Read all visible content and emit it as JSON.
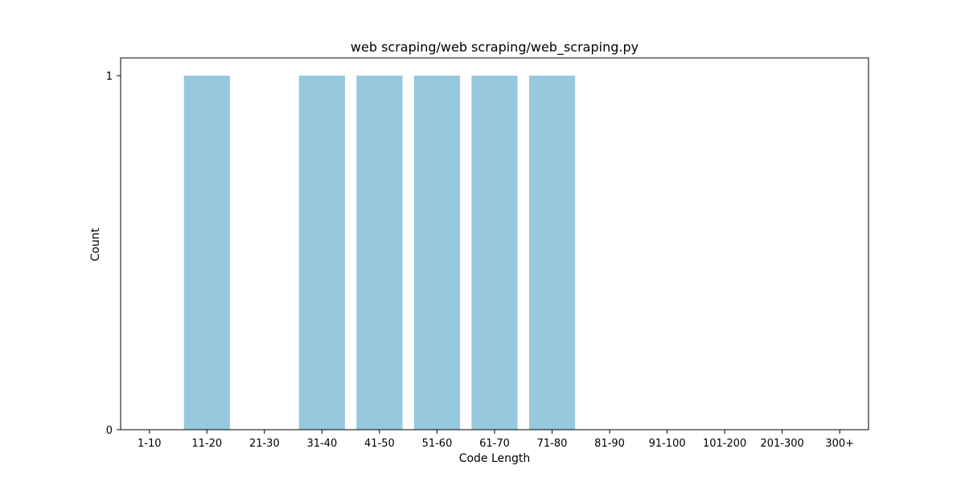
{
  "chart_data": {
    "type": "bar",
    "title": "web scraping/web scraping/web_scraping.py",
    "xlabel": "Code Length",
    "ylabel": "Count",
    "categories": [
      "1-10",
      "11-20",
      "21-30",
      "31-40",
      "41-50",
      "51-60",
      "61-70",
      "71-80",
      "81-90",
      "91-100",
      "101-200",
      "201-300",
      "300+"
    ],
    "values": [
      0,
      1,
      0,
      1,
      1,
      1,
      1,
      1,
      0,
      0,
      0,
      0,
      0
    ],
    "ylim": [
      0,
      1.05
    ],
    "yticks": [
      0,
      1
    ],
    "grid": false,
    "legend": "none",
    "bar_color": "#96c9de"
  }
}
